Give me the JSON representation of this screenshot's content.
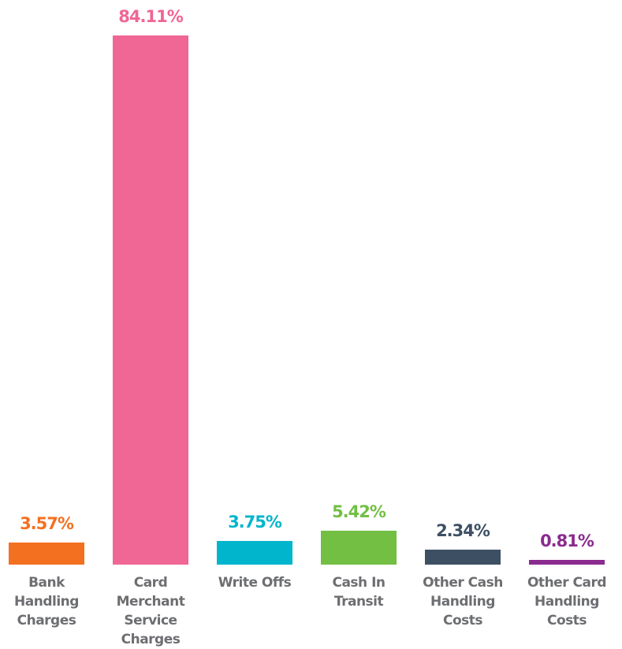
{
  "chart_data": {
    "type": "bar",
    "categories": [
      "Bank Handling Charges",
      "Card Merchant Service Charges",
      "Write Offs",
      "Cash In Transit",
      "Other Cash Handling Costs",
      "Other Card Handling Costs"
    ],
    "values": [
      3.57,
      84.11,
      3.75,
      5.42,
      2.34,
      0.81
    ],
    "value_labels": [
      "3.57%",
      "84.11%",
      "3.75%",
      "5.42%",
      "2.34%",
      "0.81%"
    ],
    "colors": [
      "#f37021",
      "#f06694",
      "#00b5cc",
      "#72bf44",
      "#3d4f63",
      "#8b2b8f"
    ]
  }
}
